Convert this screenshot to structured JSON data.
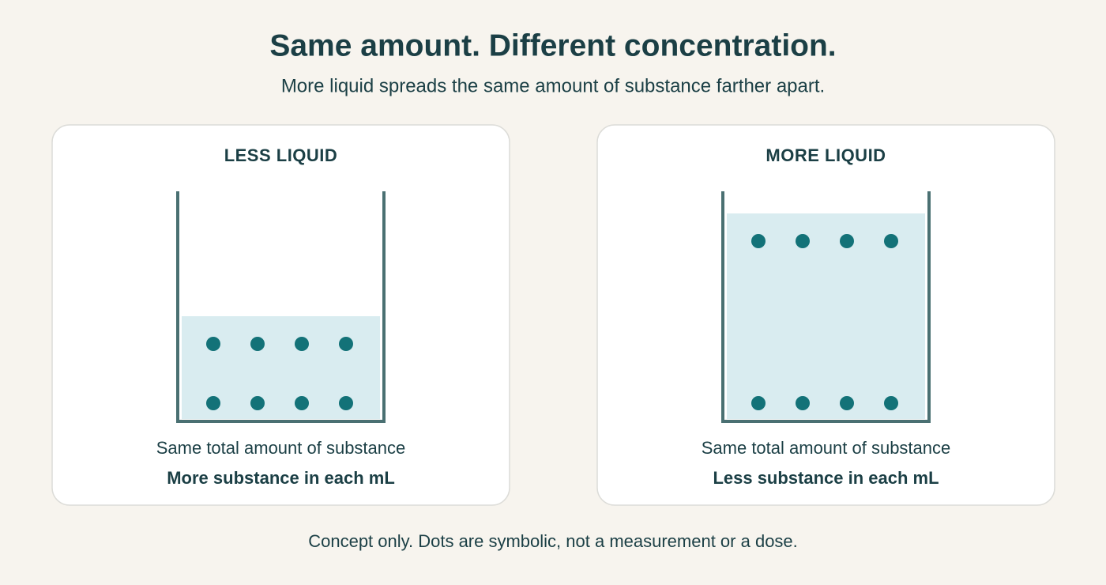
{
  "header": {
    "title": "Same amount. Different concentration.",
    "subtitle": "More liquid spreads the same amount of substance farther apart."
  },
  "panels": [
    {
      "label": "LESS LIQUID",
      "caption": "Same total amount of substance",
      "detail": "More substance in each mL"
    },
    {
      "label": "MORE LIQUID",
      "caption": "Same total amount of substance",
      "detail": "Less substance in each mL"
    }
  ],
  "footer": {
    "note": "Concept only. Dots are symbolic, not a measurement or a dose."
  }
}
